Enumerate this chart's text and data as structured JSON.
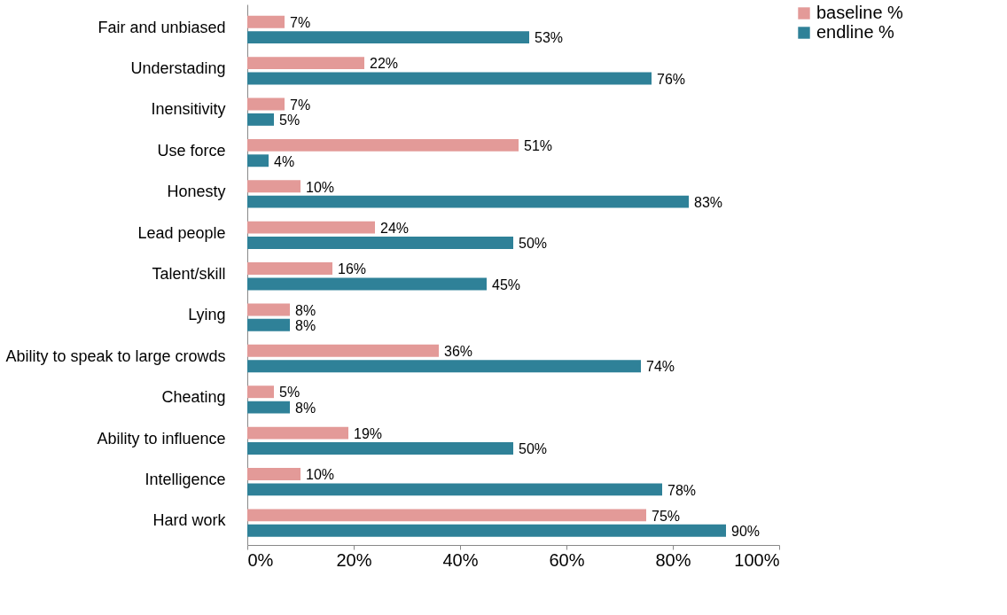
{
  "chart_data": {
    "type": "bar",
    "orientation": "horizontal",
    "categories": [
      "Fair and unbiased",
      "Understading",
      "Inensitivity",
      "Use force",
      "Honesty",
      "Lead people",
      "Talent/skill",
      "Lying",
      "Ability to speak to large crowds",
      "Cheating",
      "Ability to influence",
      "Intelligence",
      "Hard work"
    ],
    "series": [
      {
        "name": "baseline %",
        "color": "#e39a98",
        "values": [
          7,
          22,
          7,
          51,
          10,
          24,
          16,
          8,
          36,
          5,
          19,
          10,
          75
        ],
        "value_labels": [
          "7%",
          "22%",
          "7%",
          "51%",
          "10%",
          "24%",
          "16%",
          "8%",
          "36%",
          "5%",
          "19%",
          "10%",
          "75%"
        ]
      },
      {
        "name": "endline %",
        "color": "#2f8198",
        "values": [
          53,
          76,
          5,
          4,
          83,
          50,
          45,
          8,
          74,
          8,
          50,
          78,
          90
        ],
        "value_labels": [
          "53%",
          "76%",
          "5%",
          "4%",
          "83%",
          "50%",
          "45%",
          "8%",
          "74%",
          "8%",
          "50%",
          "78%",
          "90%"
        ]
      }
    ],
    "xlim": [
      0,
      100
    ],
    "xticks": [
      {
        "value": 0,
        "label": "0%"
      },
      {
        "value": 20,
        "label": "20%"
      },
      {
        "value": 40,
        "label": "40%"
      },
      {
        "value": 60,
        "label": "60%"
      },
      {
        "value": 80,
        "label": "80%"
      },
      {
        "value": 100,
        "label": "100%"
      }
    ],
    "grid": false,
    "legend": "right"
  }
}
